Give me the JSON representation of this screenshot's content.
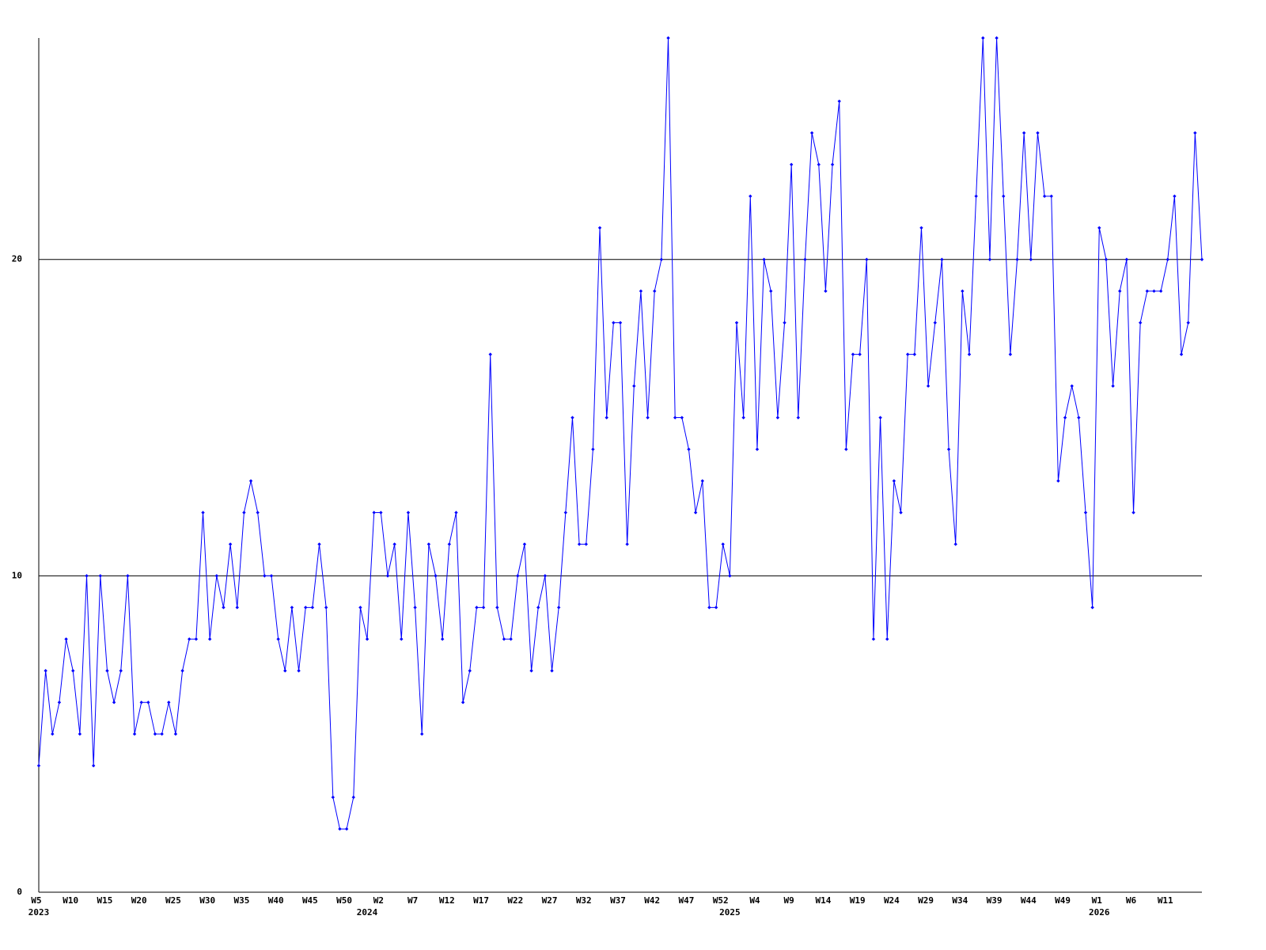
{
  "chart_data": {
    "type": "line",
    "color": "#0000ff",
    "grid": true,
    "ylim": [
      0,
      27
    ],
    "yticks": [
      0,
      10,
      20
    ],
    "categories": [
      "W5",
      null,
      null,
      null,
      null,
      "W10",
      null,
      null,
      null,
      null,
      "W15",
      null,
      null,
      null,
      null,
      "W20",
      null,
      null,
      null,
      null,
      "W25",
      null,
      null,
      null,
      null,
      "W30",
      null,
      null,
      null,
      null,
      "W35",
      null,
      null,
      null,
      null,
      "W40",
      null,
      null,
      null,
      null,
      "W45",
      null,
      null,
      null,
      null,
      "W50",
      null,
      null,
      null,
      null,
      "W2",
      null,
      null,
      null,
      null,
      "W7",
      null,
      null,
      null,
      null,
      "W12",
      null,
      null,
      null,
      null,
      "W17",
      null,
      null,
      null,
      null,
      "W22",
      null,
      null,
      null,
      null,
      "W27",
      null,
      null,
      null,
      null,
      "W32",
      null,
      null,
      null,
      null,
      "W37",
      null,
      null,
      null,
      null,
      "W42",
      null,
      null,
      null,
      null,
      "W47",
      null,
      null,
      null,
      null,
      "W52",
      null,
      null,
      null,
      null,
      "W4",
      null,
      null,
      null,
      null,
      "W9",
      null,
      null,
      null,
      null,
      "W14",
      null,
      null,
      null,
      null,
      "W19",
      null,
      null,
      null,
      null,
      "W24",
      null,
      null,
      null,
      null,
      "W29",
      null,
      null,
      null,
      null,
      "W34",
      null,
      null,
      null,
      null,
      "W39",
      null,
      null,
      null,
      null,
      "W44",
      null,
      null,
      null,
      null,
      "W49",
      null,
      null,
      null,
      null,
      "W1",
      null,
      null,
      null,
      null,
      "W6",
      null,
      null,
      null,
      null,
      "W11",
      null,
      null,
      null,
      null,
      null
    ],
    "category_years": [
      "2023",
      null,
      null,
      null,
      null,
      null,
      null,
      null,
      null,
      null,
      null,
      null,
      null,
      null,
      null,
      null,
      null,
      null,
      null,
      null,
      null,
      null,
      null,
      null,
      null,
      null,
      null,
      null,
      null,
      null,
      null,
      null,
      null,
      null,
      null,
      null,
      null,
      null,
      null,
      null,
      null,
      null,
      null,
      null,
      null,
      null,
      null,
      null,
      "2024",
      null,
      null,
      null,
      null,
      null,
      null,
      null,
      null,
      null,
      null,
      null,
      null,
      null,
      null,
      null,
      null,
      null,
      null,
      null,
      null,
      null,
      null,
      null,
      null,
      null,
      null,
      null,
      null,
      null,
      null,
      null,
      null,
      null,
      null,
      null,
      null,
      null,
      null,
      null,
      null,
      null,
      null,
      null,
      null,
      null,
      null,
      null,
      null,
      null,
      null,
      null,
      null,
      "2025",
      null,
      null,
      null,
      null,
      null,
      null,
      null,
      null,
      null,
      null,
      null,
      null,
      null,
      null,
      null,
      null,
      null,
      null,
      null,
      null,
      null,
      null,
      null,
      null,
      null,
      null,
      null,
      null,
      null,
      null,
      null,
      null,
      null,
      null,
      null,
      null,
      null,
      null,
      null,
      null,
      null,
      null,
      null,
      null,
      null,
      null,
      null,
      null,
      null,
      null,
      null,
      null,
      null,
      "2026",
      null,
      null,
      null,
      null,
      null,
      null,
      null,
      null,
      null,
      null,
      null,
      null,
      null,
      null,
      null
    ],
    "values": [
      4,
      7,
      5,
      6,
      8,
      7,
      5,
      10,
      4,
      10,
      7,
      6,
      7,
      10,
      5,
      6,
      6,
      5,
      5,
      6,
      5,
      7,
      8,
      8,
      12,
      8,
      10,
      9,
      11,
      9,
      12,
      13,
      12,
      10,
      10,
      8,
      7,
      9,
      7,
      9,
      9,
      11,
      9,
      3,
      2,
      2,
      3,
      9,
      8,
      12,
      12,
      10,
      11,
      8,
      12,
      9,
      5,
      11,
      10,
      8,
      11,
      12,
      6,
      7,
      9,
      9,
      17,
      9,
      8,
      8,
      10,
      11,
      7,
      9,
      10,
      7,
      9,
      12,
      15,
      11,
      11,
      14,
      21,
      15,
      18,
      18,
      11,
      16,
      19,
      15,
      19,
      20,
      27,
      15,
      15,
      14,
      12,
      13,
      9,
      9,
      11,
      10,
      18,
      15,
      22,
      14,
      20,
      19,
      15,
      18,
      23,
      15,
      20,
      24,
      23,
      19,
      23,
      25,
      14,
      17,
      17,
      20,
      8,
      15,
      8,
      13,
      12,
      17,
      17,
      21,
      16,
      18,
      20,
      14,
      11,
      19,
      17,
      22,
      27,
      20,
      27,
      22,
      17,
      20,
      24,
      20,
      24,
      22,
      22,
      13,
      15,
      16,
      15,
      12,
      9,
      21,
      20,
      16,
      19,
      20,
      12,
      18,
      19,
      19,
      19,
      20,
      22,
      17,
      18,
      24,
      20
    ]
  }
}
